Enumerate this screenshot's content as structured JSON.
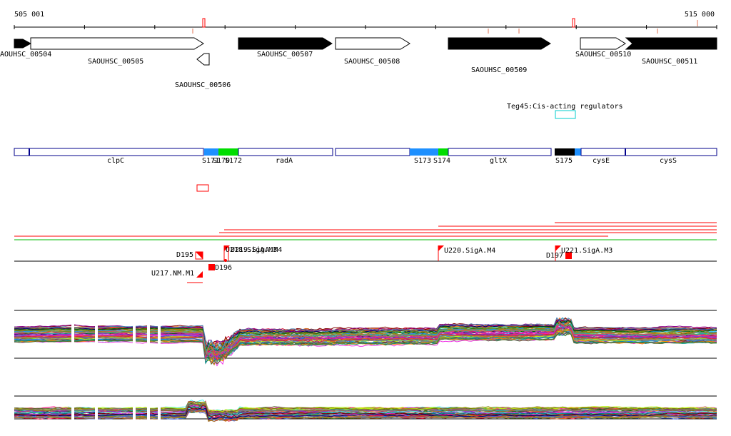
{
  "ruler": {
    "start_label": "505 001",
    "end_label": "515 000"
  },
  "genes": [
    {
      "label": "SAOUHSC_00504",
      "fill": "black",
      "dir": "right"
    },
    {
      "label": "SAOUHSC_00505",
      "fill": "white",
      "dir": "right"
    },
    {
      "label": "SAOUHSC_00506",
      "fill": "white",
      "dir": "left"
    },
    {
      "label": "SAOUHSC_00507",
      "fill": "black",
      "dir": "right"
    },
    {
      "label": "SAOUHSC_00508",
      "fill": "white",
      "dir": "right"
    },
    {
      "label": "SAOUHSC_00509",
      "fill": "black",
      "dir": "right"
    },
    {
      "label": "SAOUHSC_00510",
      "fill": "white",
      "dir": "right"
    },
    {
      "label": "SAOUHSC_00511",
      "fill": "black",
      "dir": "right"
    }
  ],
  "regulator": {
    "label": "Teg45:Cis-acting regulators"
  },
  "annotation_labels": [
    "clpC",
    "S171",
    "S170",
    "S172",
    "radA",
    "S173",
    "S174",
    "gltX",
    "S175",
    "cysE",
    "cysS"
  ],
  "promoters": [
    "D195",
    "U218.SigA.M3",
    "U219.SigA.M4",
    "D196",
    "U217.NM.M1",
    "U220.SigA.M4",
    "D197",
    "U221.SigA.M3"
  ],
  "colors": {
    "gene_fill": "#000000",
    "segment_outline": "#00008b",
    "seg_blue": "#1e90ff",
    "seg_green": "#00dd00",
    "seg_black": "#000000",
    "regulator_box": "#00cccc",
    "tilingbar": "#ff0000",
    "green_line": "#00bb00"
  },
  "tracks": {
    "expression_series_count": 60,
    "lower_series_count": 45
  }
}
